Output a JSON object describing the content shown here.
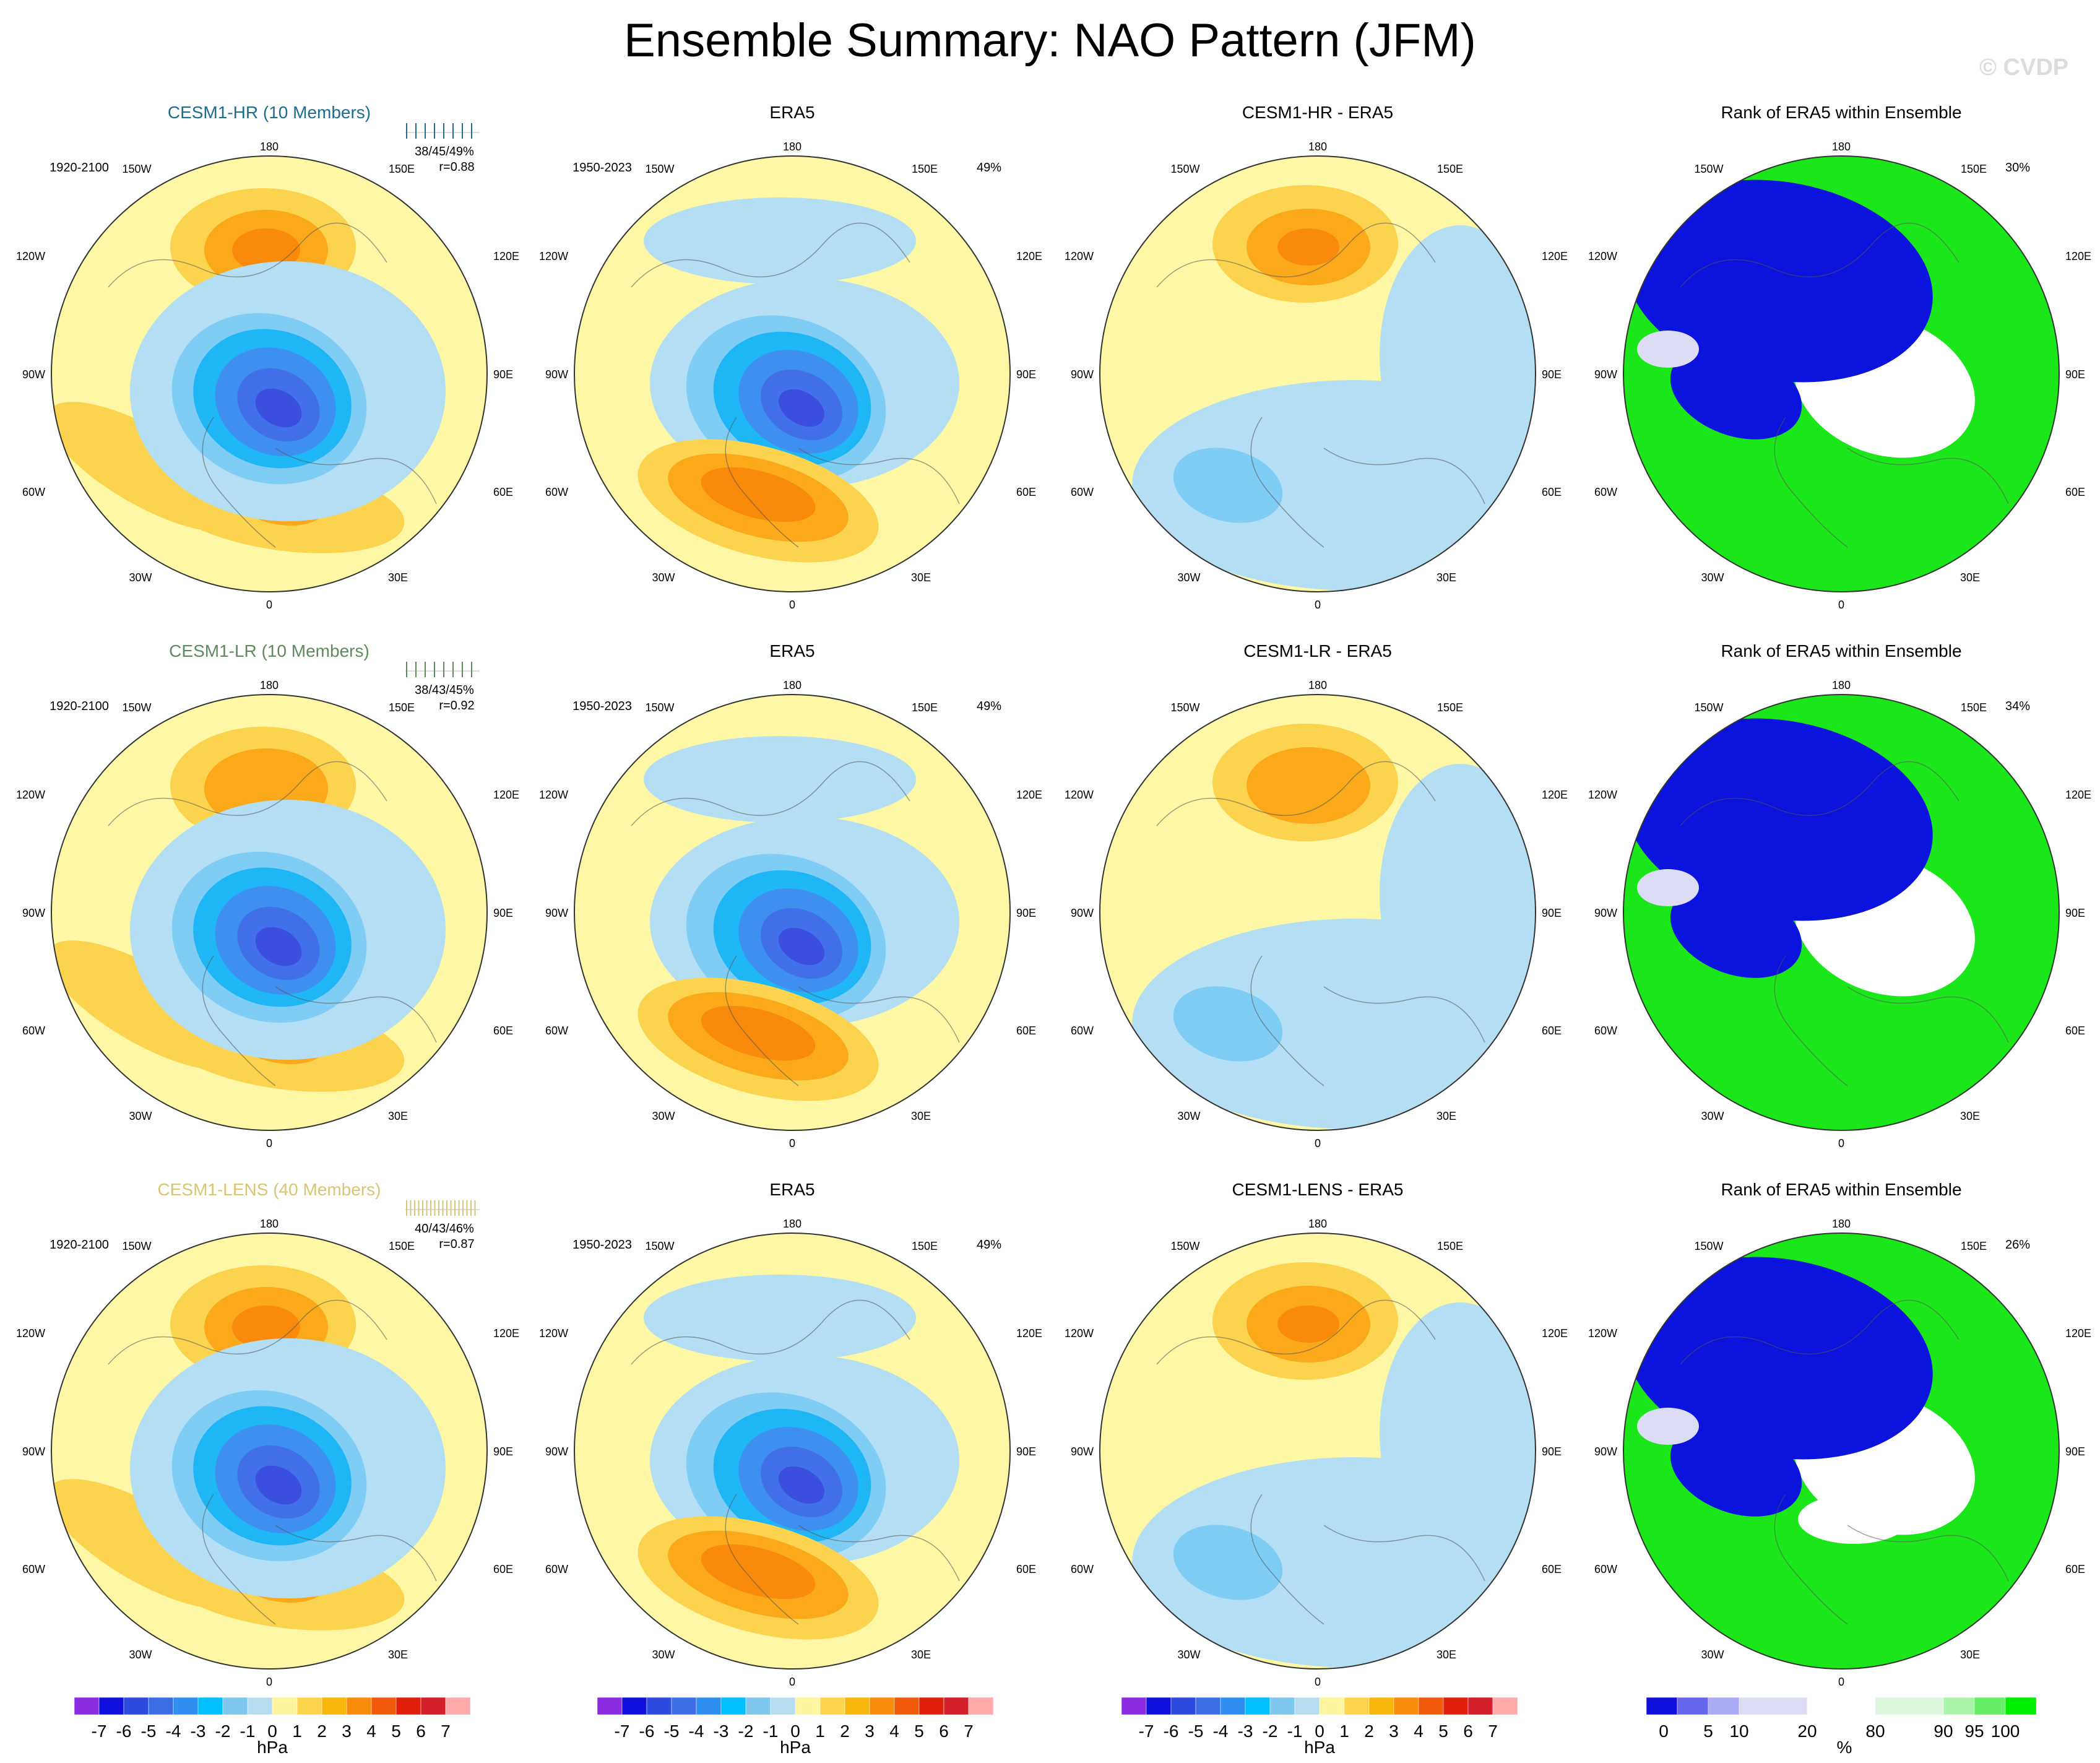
{
  "title": "Ensemble Summary: NAO Pattern (JFM)",
  "credit": "© CVDP",
  "lon_labels": {
    "top": "180",
    "bottom": "0",
    "upper_left": "150W",
    "upper_right": "150E",
    "left_high": "120W",
    "right_high": "120E",
    "left_mid": "90W",
    "right_mid": "90E",
    "left_low": "60W",
    "right_low": "60E",
    "lower_left": "30W",
    "lower_right": "30E"
  },
  "rows": [
    {
      "model": "CESM1-HR (10 Members)",
      "model_color": "#1e6d8f",
      "model_period": "1920-2100",
      "model_stats": "38/45/49%",
      "model_r": "r=0.88",
      "obs_title": "ERA5",
      "obs_period": "1950-2023",
      "obs_pct": "49%",
      "diff_title": "CESM1-HR - ERA5",
      "rank_title": "Rank of ERA5 within Ensemble",
      "rank_pct": "30%"
    },
    {
      "model": "CESM1-LR (10 Members)",
      "model_color": "#5e8a5e",
      "model_period": "1920-2100",
      "model_stats": "38/43/45%",
      "model_r": "r=0.92",
      "obs_title": "ERA5",
      "obs_period": "1950-2023",
      "obs_pct": "49%",
      "diff_title": "CESM1-LR - ERA5",
      "rank_title": "Rank of ERA5 within Ensemble",
      "rank_pct": "34%"
    },
    {
      "model": "CESM1-LENS (40 Members)",
      "model_color": "#d8c675",
      "model_period": "1920-2100",
      "model_stats": "40/43/46%",
      "model_r": "r=0.87",
      "obs_title": "ERA5",
      "obs_period": "1950-2023",
      "obs_pct": "49%",
      "diff_title": "CESM1-LENS - ERA5",
      "rank_title": "Rank of ERA5 within Ensemble",
      "rank_pct": "26%"
    }
  ],
  "hpa_colorbar": {
    "labels": [
      "-7",
      "-6",
      "-5",
      "-4",
      "-3",
      "-2",
      "-1",
      "0",
      "1",
      "2",
      "3",
      "4",
      "5",
      "6",
      "7"
    ],
    "unit": "hPa",
    "colors": [
      "#8b2be2",
      "#1010dd",
      "#2e4be0",
      "#3b6ee6",
      "#2f8ff0",
      "#00bfff",
      "#7ec8f0",
      "#b5dcf0",
      "#fff5a0",
      "#fcd34d",
      "#f9b60d",
      "#f98c0a",
      "#f05a0a",
      "#e0200a",
      "#d3202a",
      "#ffaaaa"
    ]
  },
  "rank_colorbar": {
    "labels": [
      "0",
      "5",
      "10",
      "20",
      "80",
      "90",
      "95",
      "100"
    ],
    "unit": "%",
    "colors": [
      "#1010dd",
      "#6666ee",
      "#aaaaf5",
      "#dcdcf5",
      "#ffffff",
      "#ddf5dd",
      "#aaf5aa",
      "#66ee66",
      "#00ee00"
    ]
  },
  "field_colors": {
    "yellow": "#fef7a6",
    "lightblue": "#b3def3",
    "gold": "#fcd34f",
    "orange": "#fba81a",
    "darkorange": "#f98a0c",
    "blue1": "#7fcdf5",
    "blue2": "#1fb6f6",
    "blue3": "#3e8ff0",
    "blue4": "#4170ea",
    "blue5": "#3a4fdf",
    "rank_blue": "#0a14dc",
    "rank_green": "#1ae61a",
    "rank_white": "#ffffff",
    "rank_lavender": "#dcdcf5"
  }
}
